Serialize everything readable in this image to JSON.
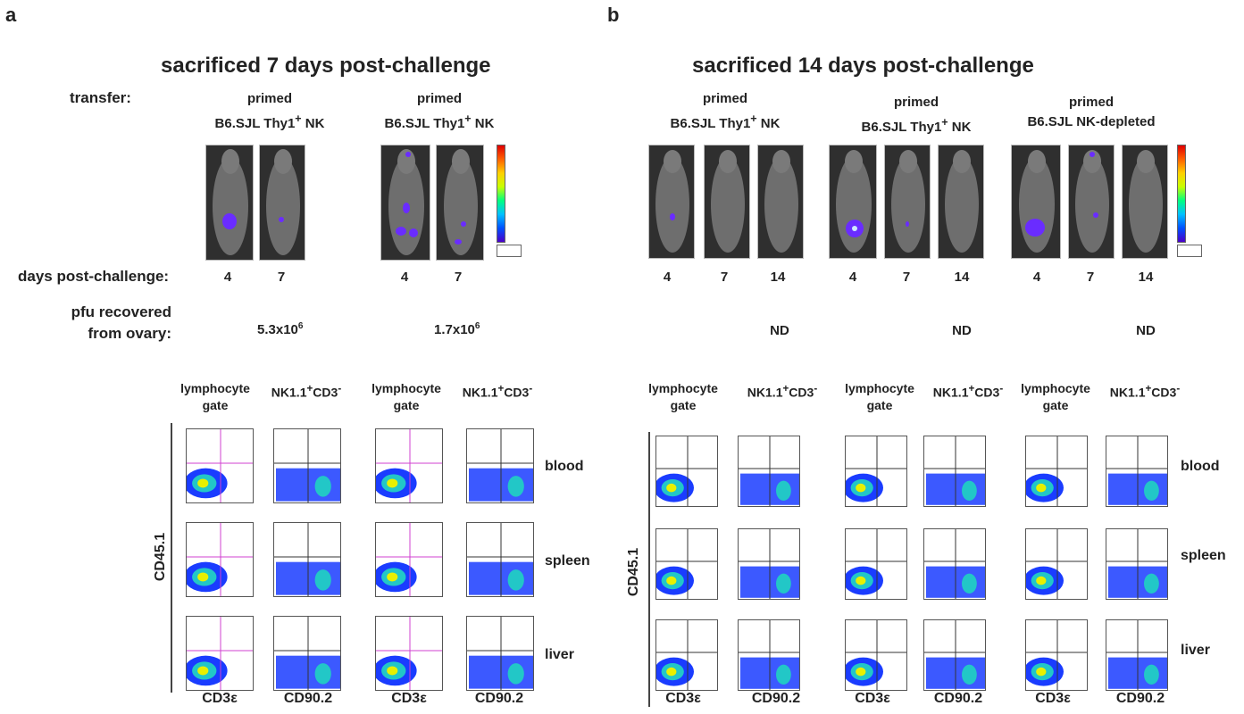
{
  "panel_a": {
    "letter": "a",
    "title": "sacrificed 7 days post-challenge",
    "transfer_label": "transfer:",
    "groups": [
      {
        "line1": "primed",
        "line2": "B6.SJL Thy1",
        "sup": "+",
        "line2_end": " NK",
        "days": [
          "4",
          "7"
        ],
        "pfu_base": "5.3x10",
        "pfu_exp": "6"
      },
      {
        "line1": "primed",
        "line2": "B6.SJL Thy1",
        "sup": "+",
        "line2_end": " NK",
        "days": [
          "4",
          "7"
        ],
        "pfu_base": "1.7x10",
        "pfu_exp": "6"
      }
    ],
    "days_label": "days post-challenge:",
    "pfu_label_1": "pfu recovered",
    "pfu_label_2": "from ovary:",
    "flow": {
      "col_headers": [
        {
          "l1": "lymphocyte",
          "l2": "gate"
        },
        {
          "l1": "NK1.1",
          "sup": "+",
          "mid": "CD3",
          "sup2": "-"
        },
        {
          "l1": "lymphocyte",
          "l2": "gate"
        },
        {
          "l1": "NK1.1",
          "sup": "+",
          "mid": "CD3",
          "sup2": "-"
        }
      ],
      "rows": [
        "blood",
        "spleen",
        "liver"
      ],
      "y_axis": "CD45.1",
      "x_axes": [
        "CD3ε",
        "CD90.2",
        "CD3ε",
        "CD90.2"
      ]
    }
  },
  "panel_b": {
    "letter": "b",
    "title": "sacrificed 14 days post-challenge",
    "groups": [
      {
        "line1": "primed",
        "line2": "B6.SJL Thy1",
        "sup": "+",
        "line2_end": " NK",
        "days": [
          "4",
          "7",
          "14"
        ],
        "pfu": "ND"
      },
      {
        "line1": "primed",
        "line2": "B6.SJL Thy1",
        "sup": "+",
        "line2_end": "  NK",
        "days": [
          "4",
          "7",
          "14"
        ],
        "pfu": "ND"
      },
      {
        "line1": "primed",
        "line2": "B6.SJL NK-depleted",
        "sup": "",
        "line2_end": "",
        "days": [
          "4",
          "7",
          "14"
        ],
        "pfu": "ND"
      }
    ],
    "flow": {
      "col_headers": [
        {
          "l1": "lymphocyte",
          "l2": "gate"
        },
        {
          "l1": "NK1.1",
          "sup": "+",
          "mid": "CD3",
          "sup2": "-"
        },
        {
          "l1": "lymphocyte",
          "l2": "gate"
        },
        {
          "l1": "NK1.1",
          "sup": "+",
          "mid": "CD3",
          "sup2": "-"
        },
        {
          "l1": "lymphocyte",
          "l2": "gate"
        },
        {
          "l1": "NK1.1",
          "sup": "+",
          "mid": "CD3",
          "sup2": "-"
        }
      ],
      "rows": [
        "blood",
        "spleen",
        "liver"
      ],
      "y_axis": "CD45.1",
      "x_axes": [
        "CD3ε",
        "CD90.2",
        "CD3ε",
        "CD90.2",
        "CD3ε",
        "CD90.2"
      ]
    }
  },
  "colors": {
    "signal": "#6a2cff",
    "density_low": "#1a3cff",
    "density_mid": "#22c7c7",
    "density_high": "#e8f000",
    "gate_line": "#d040d0"
  }
}
